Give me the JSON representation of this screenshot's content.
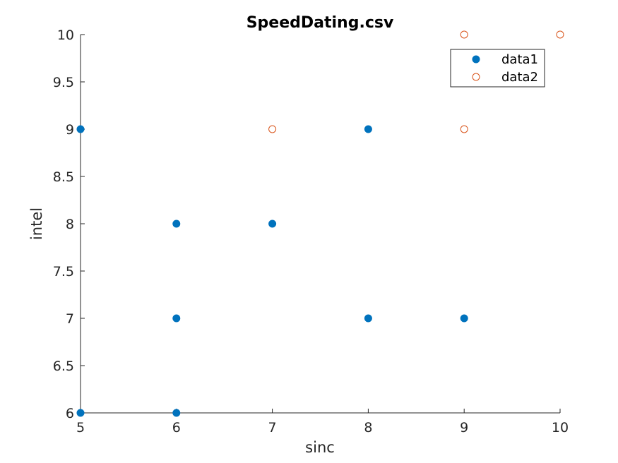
{
  "chart_data": {
    "type": "scatter",
    "title": "SpeedDating.csv",
    "xlabel": "sinc",
    "ylabel": "intel",
    "xlim": [
      5,
      10
    ],
    "ylim": [
      6,
      10
    ],
    "xticks": [
      "5",
      "6",
      "7",
      "8",
      "9",
      "10"
    ],
    "yticks": [
      "6",
      "6.5",
      "7",
      "7.5",
      "8",
      "8.5",
      "9",
      "9.5",
      "10"
    ],
    "grid": false,
    "legend_position": "top-right",
    "series": [
      {
        "name": "data1",
        "marker": "filled-circle",
        "color": "#0072BD",
        "points": [
          [
            5,
            9
          ],
          [
            5,
            6
          ],
          [
            6,
            8
          ],
          [
            6,
            7
          ],
          [
            6,
            6
          ],
          [
            7,
            8
          ],
          [
            8,
            9
          ],
          [
            8,
            7
          ],
          [
            9,
            7
          ]
        ]
      },
      {
        "name": "data2",
        "marker": "open-circle",
        "color": "#D95319",
        "points": [
          [
            7,
            9
          ],
          [
            9,
            10
          ],
          [
            9,
            9
          ],
          [
            10,
            10
          ]
        ]
      }
    ]
  }
}
